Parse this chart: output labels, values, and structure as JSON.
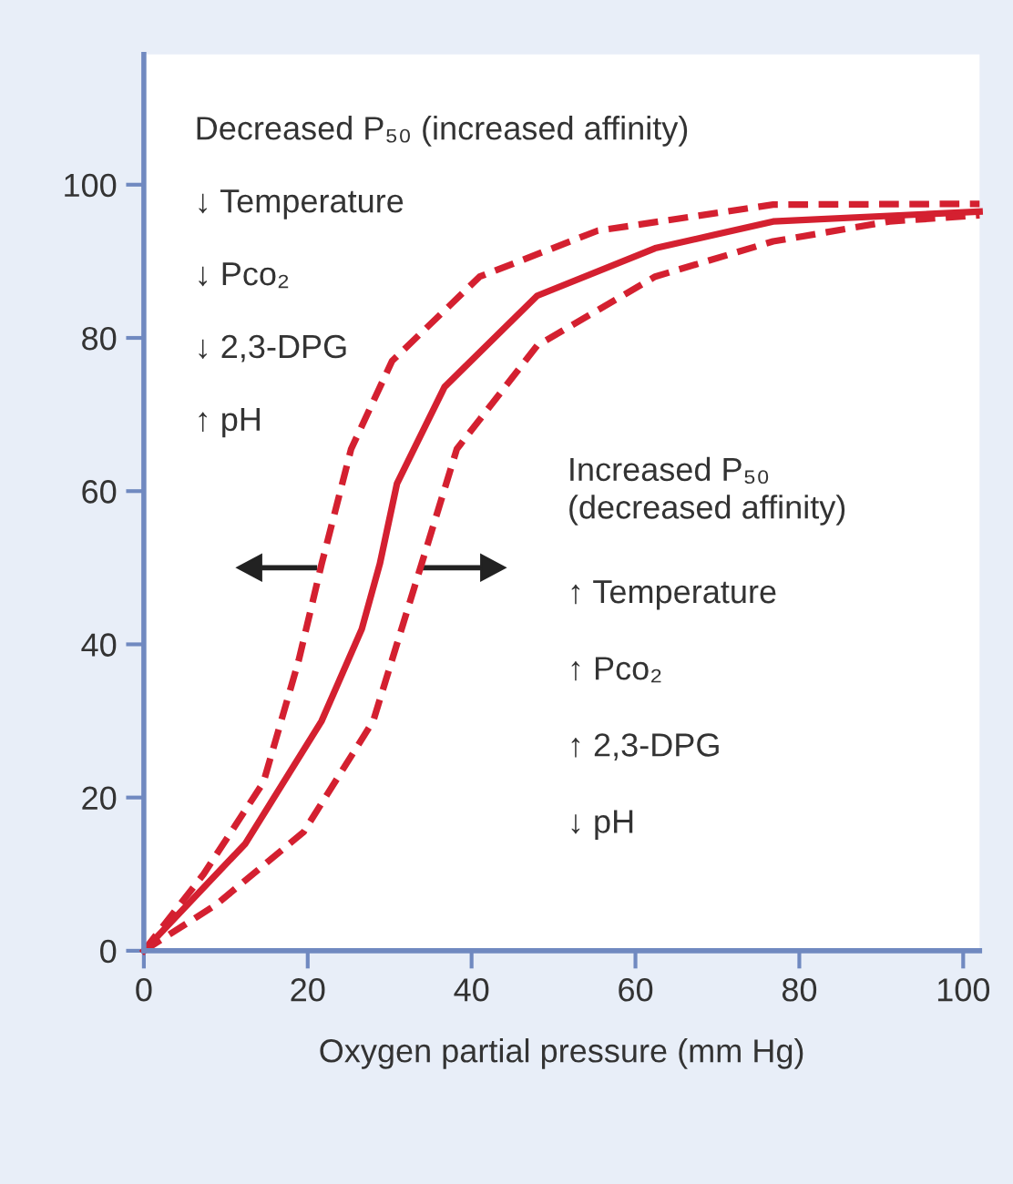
{
  "chart_data": {
    "type": "line",
    "xlabel": "Oxygen partial pressure (mm Hg)",
    "xlim": [
      0,
      102
    ],
    "xticks": [
      0,
      20,
      40,
      60,
      80,
      100
    ],
    "ylim": [
      0,
      117
    ],
    "yticks": [
      0,
      20,
      40,
      60,
      80,
      100
    ],
    "grid": false,
    "legend": false,
    "marker": "none",
    "series": [
      {
        "color": "#d42030",
        "line_style": "dashed",
        "x": [
          0,
          7.3,
          14.6,
          18.9,
          21.7,
          25.3,
          30.3,
          41,
          55.4,
          76.8,
          102
        ],
        "values": [
          0,
          10,
          22,
          37.9,
          50.5,
          65.5,
          77,
          88,
          94,
          97.4,
          97.5
        ]
      },
      {
        "color": "#d42030",
        "line_style": "solid",
        "x": [
          0,
          12.4,
          21.7,
          26.6,
          28.8,
          30.9,
          36.7,
          48,
          62.4,
          76.8,
          102
        ],
        "values": [
          0,
          14,
          30,
          42,
          50.5,
          61,
          73.6,
          85.5,
          91.7,
          95.2,
          96.5
        ]
      },
      {
        "color": "#d42030",
        "line_style": "dashed",
        "x": [
          0,
          8.8,
          19.5,
          28,
          33.9,
          38.2,
          48,
          62.4,
          76.8,
          91,
          102
        ],
        "values": [
          0,
          6,
          15.5,
          30,
          50.5,
          65.5,
          79,
          88,
          92.6,
          95.2,
          96
        ]
      }
    ],
    "annotations": [
      "Decreased P₅₀ (increased affinity)",
      "↓ Temperature",
      "↓ Pco₂",
      "↓ 2,3-DPG",
      "↑ pH",
      "Increased P₅₀\n(decreased affinity)",
      "↑ Temperature",
      "↑ Pco₂",
      "↑ 2,3-DPG",
      "↓ pH"
    ]
  }
}
